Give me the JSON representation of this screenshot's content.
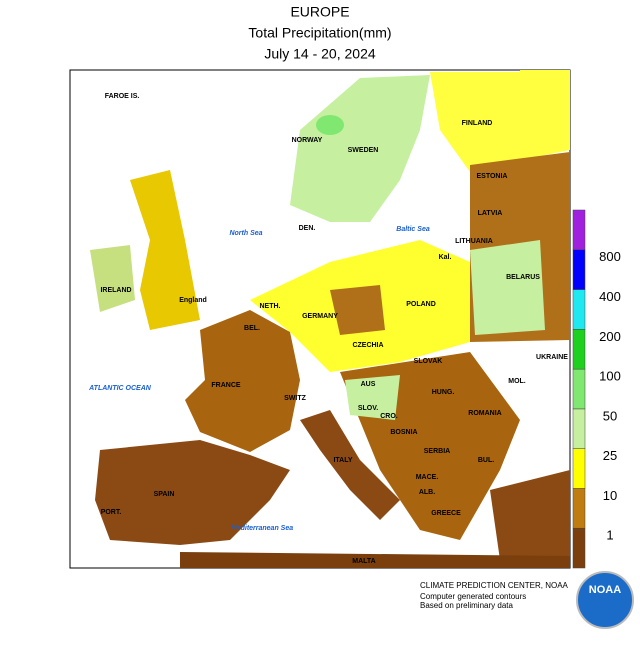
{
  "header": {
    "title": "EUROPE",
    "subtitle": "Total Precipitation(mm)",
    "dates": "July 14 - 20, 2024"
  },
  "map": {
    "labels": [
      "FAROE IS.",
      "NORWAY",
      "SWEDEN",
      "FINLAND",
      "ESTONIA",
      "LATVIA",
      "LITHUANIA",
      "Kal.",
      "BELARUS",
      "POLAND",
      "DEN.",
      "IRELAND",
      "England",
      "NETH.",
      "BEL.",
      "GERMANY",
      "CZECHIA",
      "SLOVAK",
      "HUNG.",
      "AUS",
      "SWITZ",
      "SLOV.",
      "CRO.",
      "BOSNIA",
      "SERBIA",
      "ROMANIA",
      "MOL.",
      "UKRAINE",
      "FRANCE",
      "ITALY",
      "SPAIN",
      "PORT.",
      "MACE.",
      "ALB.",
      "BUL.",
      "GREECE",
      "MALTA"
    ],
    "seas": [
      "North Sea",
      "Baltic Sea",
      "ATLANTIC OCEAN",
      "Mediterranean Sea"
    ]
  },
  "legend": {
    "colors": [
      "#7a3f0c",
      "#bf7c10",
      "#ffff00",
      "#c6f0a0",
      "#80e870",
      "#20d020",
      "#20e8f0",
      "#0000ff",
      "#a020e0"
    ],
    "labels": [
      "1",
      "10",
      "25",
      "50",
      "100",
      "200",
      "400",
      "800"
    ]
  },
  "credits": {
    "line1": "CLIMATE PREDICTION CENTER, NOAA",
    "line2": "Computer generated contours",
    "line3": "Based on preliminary data",
    "logo": "NOAA"
  }
}
